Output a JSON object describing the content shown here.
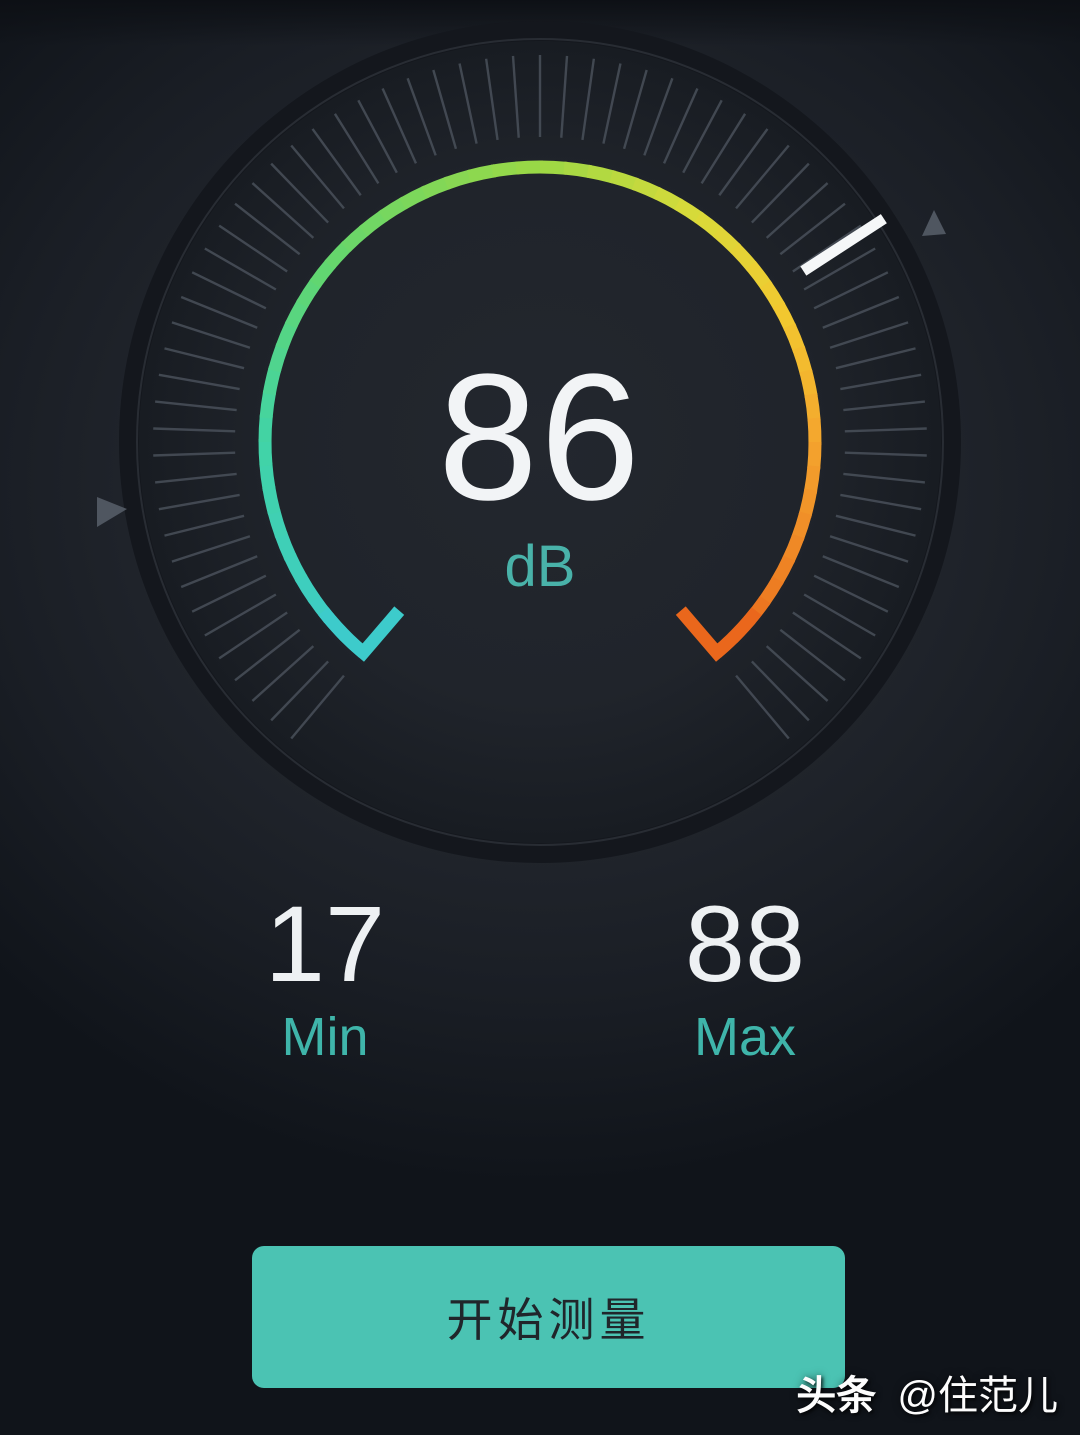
{
  "gauge": {
    "value": "86",
    "unit": "dB",
    "needle_angle_deg": 57,
    "stats": {
      "min": {
        "value": "17",
        "label": "Min"
      },
      "max": {
        "value": "88",
        "label": "Max"
      }
    }
  },
  "colors": {
    "accent_teal": "#49b2a9",
    "value_text": "#f2f4f6",
    "needle": "#f5f7f8",
    "tick": "#49505a",
    "marker": "#4f5660",
    "button_bg": "#4bc3b3",
    "button_text": "#20262b",
    "arc_stops": [
      {
        "t": 0.0,
        "c": "#3dcbcb"
      },
      {
        "t": 0.18,
        "c": "#41d3a6"
      },
      {
        "t": 0.32,
        "c": "#63d66e"
      },
      {
        "t": 0.5,
        "c": "#9bd845"
      },
      {
        "t": 0.62,
        "c": "#d8da3a"
      },
      {
        "t": 0.72,
        "c": "#f2c92f"
      },
      {
        "t": 0.82,
        "c": "#f4a52e"
      },
      {
        "t": 1.0,
        "c": "#ea671c"
      }
    ]
  },
  "button": {
    "label": "开始测量"
  },
  "watermark": {
    "brand": "头条",
    "handle": "@住范儿"
  }
}
